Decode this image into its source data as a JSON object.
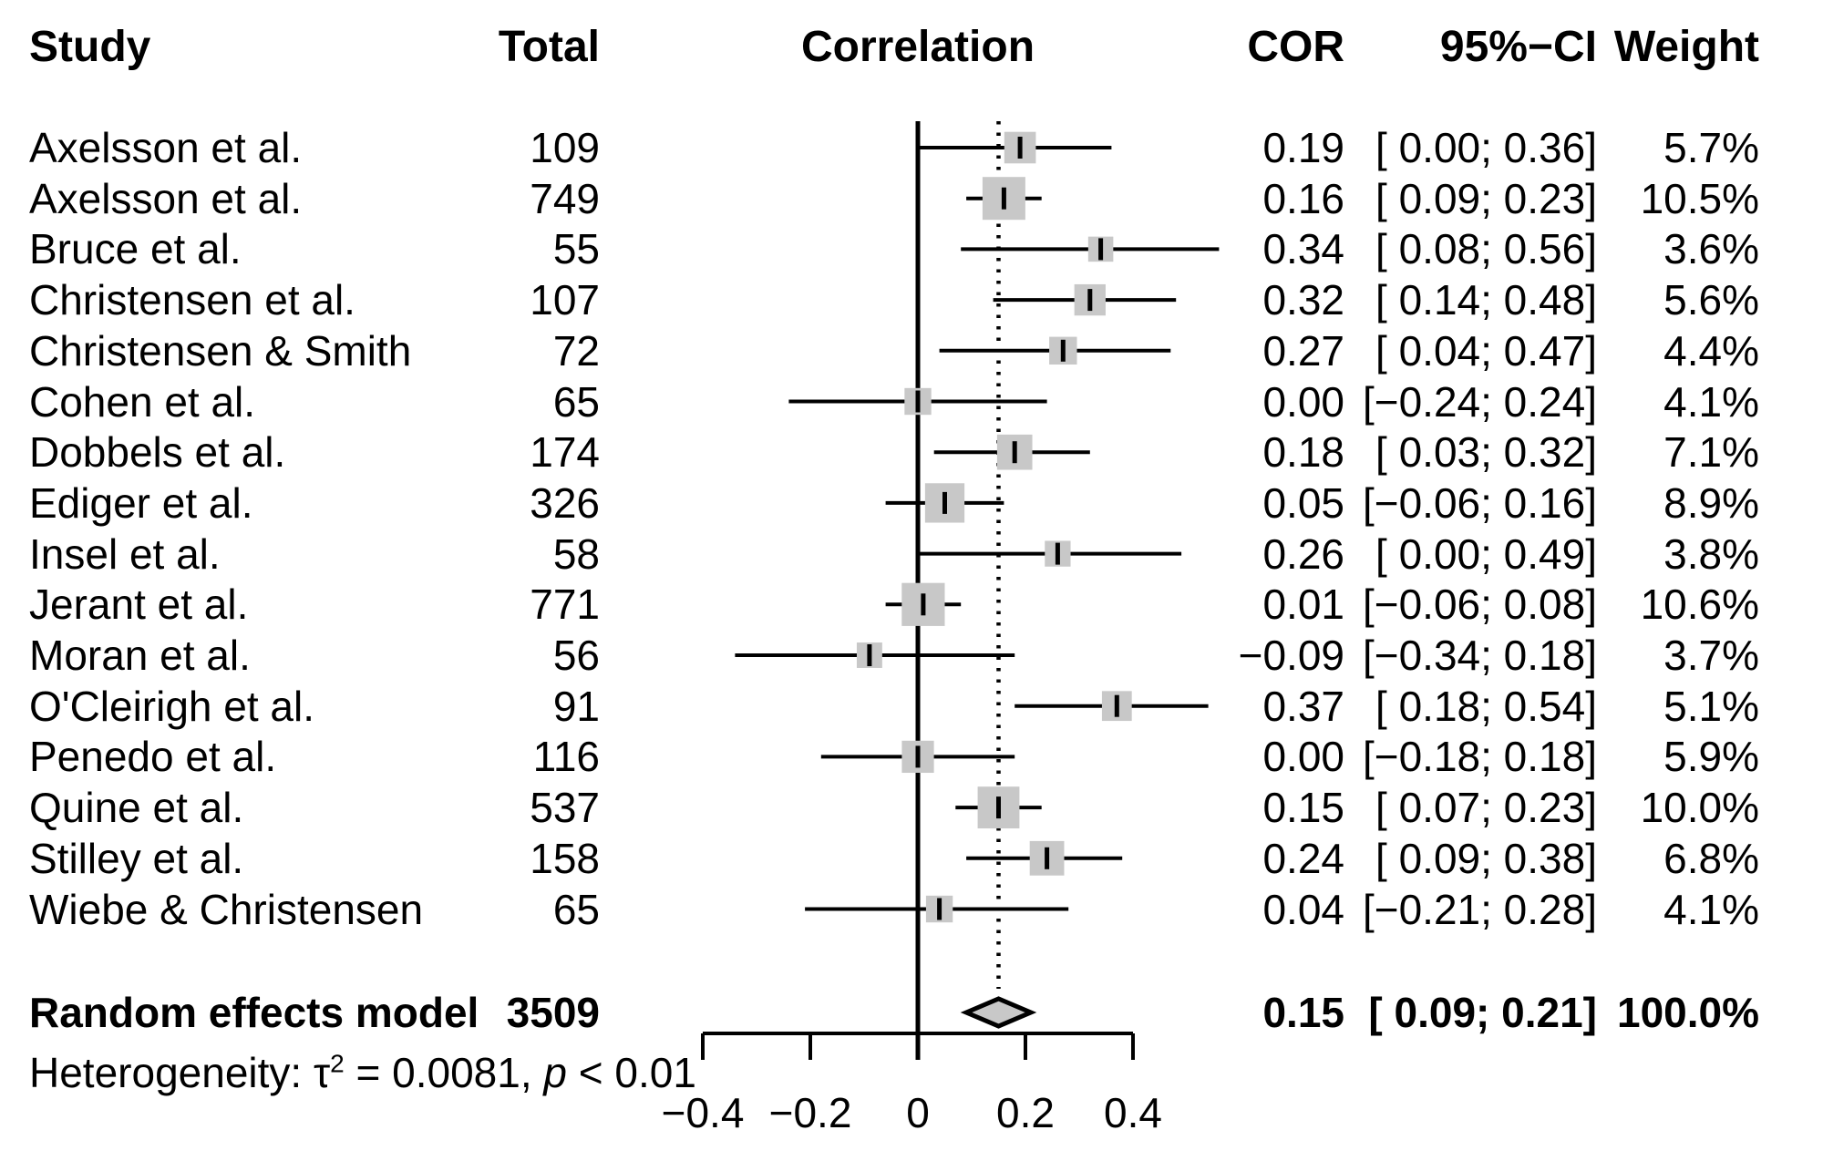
{
  "header": {
    "study": "Study",
    "total": "Total",
    "correlation": "Correlation",
    "cor": "COR",
    "ci": "95%−CI",
    "weight": "Weight"
  },
  "chart_data": {
    "type": "forest",
    "effect_measure": "COR",
    "columns": [
      "Study",
      "Total",
      "Correlation",
      "COR",
      "95%−CI",
      "Weight"
    ],
    "x_axis": {
      "range": [
        -0.4,
        0.4
      ],
      "ticks": [
        -0.4,
        -0.2,
        0,
        0.2,
        0.4
      ],
      "tick_labels": [
        "−0.4",
        "−0.2",
        "0",
        "0.2",
        "0.4"
      ],
      "zero_ref_line": 0,
      "dotted_ref_line": 0.15
    },
    "rows": [
      {
        "study": "Axelsson et al.",
        "total": "109",
        "cor": 0.19,
        "ci_low": 0.0,
        "ci_high": 0.36,
        "cor_label": "0.19",
        "ci_label": "[ 0.00; 0.36]",
        "weight_pct": 5.7,
        "weight_label": "5.7%"
      },
      {
        "study": "Axelsson et al.",
        "total": "749",
        "cor": 0.16,
        "ci_low": 0.09,
        "ci_high": 0.23,
        "cor_label": "0.16",
        "ci_label": "[ 0.09; 0.23]",
        "weight_pct": 10.5,
        "weight_label": "10.5%"
      },
      {
        "study": "Bruce et al.",
        "total": "55",
        "cor": 0.34,
        "ci_low": 0.08,
        "ci_high": 0.56,
        "cor_label": "0.34",
        "ci_label": "[ 0.08; 0.56]",
        "weight_pct": 3.6,
        "weight_label": "3.6%"
      },
      {
        "study": "Christensen et al.",
        "total": "107",
        "cor": 0.32,
        "ci_low": 0.14,
        "ci_high": 0.48,
        "cor_label": "0.32",
        "ci_label": "[ 0.14; 0.48]",
        "weight_pct": 5.6,
        "weight_label": "5.6%"
      },
      {
        "study": "Christensen & Smith",
        "total": "72",
        "cor": 0.27,
        "ci_low": 0.04,
        "ci_high": 0.47,
        "cor_label": "0.27",
        "ci_label": "[ 0.04; 0.47]",
        "weight_pct": 4.4,
        "weight_label": "4.4%"
      },
      {
        "study": "Cohen et al.",
        "total": "65",
        "cor": 0.0,
        "ci_low": -0.24,
        "ci_high": 0.24,
        "cor_label": "0.00",
        "ci_label": "[−0.24; 0.24]",
        "weight_pct": 4.1,
        "weight_label": "4.1%"
      },
      {
        "study": "Dobbels et al.",
        "total": "174",
        "cor": 0.18,
        "ci_low": 0.03,
        "ci_high": 0.32,
        "cor_label": "0.18",
        "ci_label": "[ 0.03; 0.32]",
        "weight_pct": 7.1,
        "weight_label": "7.1%"
      },
      {
        "study": "Ediger et al.",
        "total": "326",
        "cor": 0.05,
        "ci_low": -0.06,
        "ci_high": 0.16,
        "cor_label": "0.05",
        "ci_label": "[−0.06; 0.16]",
        "weight_pct": 8.9,
        "weight_label": "8.9%"
      },
      {
        "study": "Insel et al.",
        "total": "58",
        "cor": 0.26,
        "ci_low": 0.0,
        "ci_high": 0.49,
        "cor_label": "0.26",
        "ci_label": "[ 0.00; 0.49]",
        "weight_pct": 3.8,
        "weight_label": "3.8%"
      },
      {
        "study": "Jerant et al.",
        "total": "771",
        "cor": 0.01,
        "ci_low": -0.06,
        "ci_high": 0.08,
        "cor_label": "0.01",
        "ci_label": "[−0.06; 0.08]",
        "weight_pct": 10.6,
        "weight_label": "10.6%"
      },
      {
        "study": "Moran et al.",
        "total": "56",
        "cor": -0.09,
        "ci_low": -0.34,
        "ci_high": 0.18,
        "cor_label": "−0.09",
        "ci_label": "[−0.34; 0.18]",
        "weight_pct": 3.7,
        "weight_label": "3.7%"
      },
      {
        "study": "O'Cleirigh et al.",
        "total": "91",
        "cor": 0.37,
        "ci_low": 0.18,
        "ci_high": 0.54,
        "cor_label": "0.37",
        "ci_label": "[ 0.18; 0.54]",
        "weight_pct": 5.1,
        "weight_label": "5.1%"
      },
      {
        "study": "Penedo et al.",
        "total": "116",
        "cor": 0.0,
        "ci_low": -0.18,
        "ci_high": 0.18,
        "cor_label": "0.00",
        "ci_label": "[−0.18; 0.18]",
        "weight_pct": 5.9,
        "weight_label": "5.9%"
      },
      {
        "study": "Quine et al.",
        "total": "537",
        "cor": 0.15,
        "ci_low": 0.07,
        "ci_high": 0.23,
        "cor_label": "0.15",
        "ci_label": "[ 0.07; 0.23]",
        "weight_pct": 10.0,
        "weight_label": "10.0%"
      },
      {
        "study": "Stilley et al.",
        "total": "158",
        "cor": 0.24,
        "ci_low": 0.09,
        "ci_high": 0.38,
        "cor_label": "0.24",
        "ci_label": "[ 0.09; 0.38]",
        "weight_pct": 6.8,
        "weight_label": "6.8%"
      },
      {
        "study": "Wiebe & Christensen",
        "total": "65",
        "cor": 0.04,
        "ci_low": -0.21,
        "ci_high": 0.28,
        "cor_label": "0.04",
        "ci_label": "[−0.21; 0.28]",
        "weight_pct": 4.1,
        "weight_label": "4.1%"
      }
    ],
    "pooled": {
      "study": "Random effects model",
      "total": "3509",
      "cor": 0.15,
      "ci_low": 0.09,
      "ci_high": 0.21,
      "cor_label": "0.15",
      "ci_label": "[ 0.09; 0.21]",
      "weight_label": "100.0%"
    },
    "heterogeneity": {
      "p1": "Heterogeneity: τ",
      "p2": "2",
      "p3": " = 0.0081, ",
      "p4": "p",
      "p5": " < 0.01"
    },
    "colors": {
      "square_fill": "#c8c8c8",
      "diamond_fill": "#c8c8c8",
      "line": "#000000"
    }
  }
}
